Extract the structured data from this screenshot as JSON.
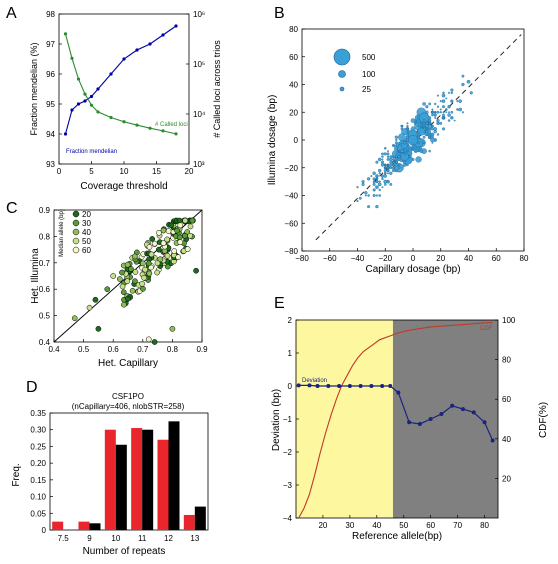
{
  "panels": {
    "A": {
      "label": "A",
      "chart_data": {
        "type": "line",
        "xlabel": "Coverage threshold",
        "ylabel_left": "Fraction mendelian (%)",
        "ylabel_right": "# Called loci across trios",
        "xlim": [
          0,
          20
        ],
        "ylim_left": [
          93,
          98
        ],
        "ylim_right_log10": [
          3,
          6
        ],
        "x_ticks": [
          "0",
          "5",
          "10",
          "15",
          "20"
        ],
        "y_ticks_left": [
          "93",
          "94",
          "95",
          "96",
          "97",
          "98"
        ],
        "y_ticks_right": [
          "10³",
          "10⁴",
          "10⁵",
          "10⁶"
        ],
        "series": [
          {
            "name": "Fraction mendelian",
            "axis": "left",
            "color": "#0000aa",
            "x": [
              1,
              2,
              3,
              4,
              5,
              6,
              8,
              10,
              12,
              14,
              16,
              18
            ],
            "y": [
              94.0,
              94.8,
              95.0,
              95.1,
              95.25,
              95.5,
              96.0,
              96.5,
              96.8,
              97.0,
              97.3,
              97.6
            ]
          },
          {
            "name": "# Called loci",
            "axis": "right",
            "color": "#2e8b2e",
            "x": [
              1,
              2,
              3,
              4,
              5,
              6,
              8,
              10,
              12,
              14,
              16,
              18
            ],
            "y": [
              400000,
              130000,
              50000,
              25000,
              15000,
              11000,
              8500,
              7000,
              6000,
              5200,
              4600,
              4000
            ]
          }
        ]
      }
    },
    "B": {
      "label": "B",
      "chart_data": {
        "type": "scatter",
        "xlabel": "Capillary dosage (bp)",
        "ylabel": "Illumina dosage (bp)",
        "xlim": [
          -80,
          80
        ],
        "ylim": [
          -80,
          80
        ],
        "x_ticks": [
          "−80",
          "−60",
          "−40",
          "−20",
          "0",
          "20",
          "40",
          "60",
          "80"
        ],
        "y_ticks": [
          "−80",
          "−60",
          "−40",
          "−20",
          "0",
          "20",
          "40",
          "60",
          "80"
        ],
        "legend_labels": [
          "500",
          "100",
          "25"
        ],
        "color": "#3aa0d8",
        "dashed_diagonal": true
      }
    },
    "C": {
      "label": "C",
      "chart_data": {
        "type": "scatter",
        "xlabel": "Het. Capillary",
        "ylabel": "Het. Illumina",
        "xlim": [
          0.4,
          0.9
        ],
        "ylim": [
          0.4,
          0.9
        ],
        "x_ticks": [
          "0.4",
          "0.5",
          "0.6",
          "0.7",
          "0.8",
          "0.9"
        ],
        "y_ticks": [
          "0.4",
          "0.5",
          "0.6",
          "0.7",
          "0.8",
          "0.9"
        ],
        "colorbar_title": "Median allele (bp)",
        "colorbar_labels": [
          "20",
          "30",
          "40",
          "50",
          "60"
        ],
        "diagonal": true
      }
    },
    "D": {
      "label": "D",
      "chart_data": {
        "type": "bar",
        "title": "CSF1PO",
        "subtitle": "(nCapillary=406, nlobSTR=258)",
        "xlabel": "Number of repeats",
        "ylabel": "Freq.",
        "categories": [
          "7.5",
          "9",
          "10",
          "11",
          "12",
          "13"
        ],
        "ylim": [
          0,
          0.35
        ],
        "y_ticks": [
          "0",
          "0.05",
          "0.10",
          "0.15",
          "0.20",
          "0.25",
          "0.30",
          "0.35"
        ],
        "series": [
          {
            "color": "#e8262b",
            "values": [
              0.025,
              0.025,
              0.3,
              0.305,
              0.27,
              0.045
            ]
          },
          {
            "color": "#000000",
            "values": [
              0.0,
              0.02,
              0.255,
              0.3,
              0.325,
              0.07
            ]
          }
        ]
      }
    },
    "E": {
      "label": "E",
      "chart_data": {
        "type": "line",
        "xlabel": "Reference allele(bp)",
        "ylabel_left": "Deviation (bp)",
        "ylabel_right": "CDF(%)",
        "xlim": [
          10,
          85
        ],
        "ylim_left": [
          -4,
          2
        ],
        "ylim_right": [
          0,
          100
        ],
        "x_ticks": [
          "20",
          "30",
          "40",
          "50",
          "60",
          "70",
          "80"
        ],
        "y_ticks_left": [
          "−4",
          "−3",
          "−2",
          "−1",
          "0",
          "1",
          "2"
        ],
        "y_ticks_right": [
          "20",
          "40",
          "60",
          "80",
          "100"
        ],
        "shaded_regions": [
          {
            "from": 10,
            "to": 46,
            "color": "#fdf8a0"
          },
          {
            "from": 46,
            "to": 85,
            "color": "#808080"
          }
        ],
        "series": [
          {
            "name": "Deviation",
            "axis": "left",
            "color": "#1a237e",
            "x": [
              11,
              15,
              18,
              22,
              26,
              30,
              34,
              38,
              42,
              45,
              48,
              52,
              56,
              60,
              64,
              68,
              72,
              76,
              80,
              83
            ],
            "y": [
              0.02,
              0.02,
              0.0,
              0.0,
              0.0,
              0.0,
              0.0,
              0.0,
              0.0,
              0.0,
              -0.2,
              -1.1,
              -1.15,
              -1.0,
              -0.85,
              -0.6,
              -0.7,
              -0.8,
              -1.1,
              -1.65
            ]
          },
          {
            "name": "CDF",
            "axis": "right",
            "color": "#c0392b",
            "x": [
              11,
              13,
              15,
              17,
              19,
              21,
              23,
              25,
              27,
              29,
              31,
              33,
              35,
              37,
              39,
              41,
              43,
              45,
              48,
              51,
              55,
              60,
              65,
              70,
              75,
              80,
              83
            ],
            "y": [
              0,
              5,
              12,
              22,
              33,
              43,
              52,
              60,
              67,
              72,
              77,
              81,
              84,
              86,
              88,
              90,
              91,
              92,
              93.5,
              94.5,
              95.5,
              96.5,
              97,
              97.5,
              98,
              98.5,
              98.7
            ]
          }
        ]
      }
    }
  }
}
